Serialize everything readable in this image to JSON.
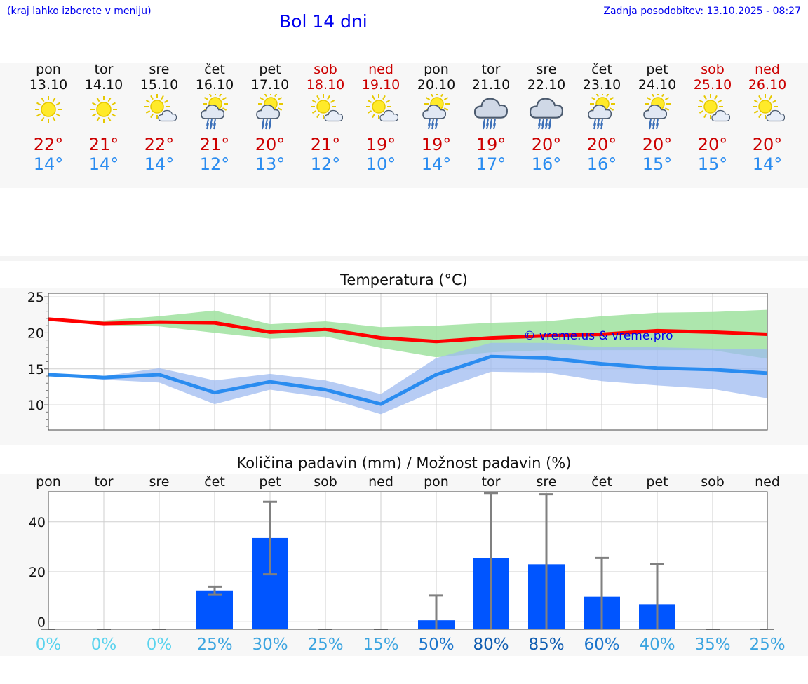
{
  "header": {
    "menu_hint": "(kraj lahko izberete v meniju)",
    "title": "Bol 14 dni",
    "last_update": "Zadnja posodobitev: 13.10.2025 - 08:27"
  },
  "colors": {
    "weekend": "#cc0000",
    "tmax": "#cc0000",
    "tmin": "#2a8cf0",
    "max_line": "#ff0000",
    "min_line": "#2a8cf0",
    "max_band": "#9fe29f",
    "min_band": "#9fbbf0",
    "bar": "#0055ff",
    "whisker": "#808080"
  },
  "days": [
    {
      "name": "pon",
      "date": "13.10",
      "weekend": false,
      "icon": "sun-icon",
      "tmax": "22°",
      "tmin": "14°"
    },
    {
      "name": "tor",
      "date": "14.10",
      "weekend": false,
      "icon": "sun-icon",
      "tmax": "21°",
      "tmin": "14°"
    },
    {
      "name": "sre",
      "date": "15.10",
      "weekend": false,
      "icon": "sun-cloud-icon",
      "tmax": "22°",
      "tmin": "14°"
    },
    {
      "name": "čet",
      "date": "16.10",
      "weekend": false,
      "icon": "sun-cloud-rain-icon",
      "tmax": "21°",
      "tmin": "12°"
    },
    {
      "name": "pet",
      "date": "17.10",
      "weekend": false,
      "icon": "sun-cloud-rain-icon",
      "tmax": "20°",
      "tmin": "13°"
    },
    {
      "name": "sob",
      "date": "18.10",
      "weekend": true,
      "icon": "sun-cloud-icon",
      "tmax": "21°",
      "tmin": "12°"
    },
    {
      "name": "ned",
      "date": "19.10",
      "weekend": true,
      "icon": "sun-cloud-icon",
      "tmax": "19°",
      "tmin": "10°"
    },
    {
      "name": "pon",
      "date": "20.10",
      "weekend": false,
      "icon": "sun-cloud-rain-icon",
      "tmax": "19°",
      "tmin": "14°"
    },
    {
      "name": "tor",
      "date": "21.10",
      "weekend": false,
      "icon": "cloud-rain-icon",
      "tmax": "19°",
      "tmin": "17°"
    },
    {
      "name": "sre",
      "date": "22.10",
      "weekend": false,
      "icon": "cloud-rain-icon",
      "tmax": "20°",
      "tmin": "16°"
    },
    {
      "name": "čet",
      "date": "23.10",
      "weekend": false,
      "icon": "sun-cloud-rain-icon",
      "tmax": "20°",
      "tmin": "16°"
    },
    {
      "name": "pet",
      "date": "24.10",
      "weekend": false,
      "icon": "sun-cloud-rain-icon",
      "tmax": "20°",
      "tmin": "15°"
    },
    {
      "name": "sob",
      "date": "25.10",
      "weekend": true,
      "icon": "sun-cloud-icon",
      "tmax": "20°",
      "tmin": "15°"
    },
    {
      "name": "ned",
      "date": "26.10",
      "weekend": true,
      "icon": "sun-cloud-icon",
      "tmax": "20°",
      "tmin": "14°"
    }
  ],
  "chart_data": [
    {
      "type": "line",
      "title": "Temperatura (°C)",
      "watermark": "© vreme.us & vreme.pro",
      "x": [
        "13.10",
        "14.10",
        "15.10",
        "16.10",
        "17.10",
        "18.10",
        "19.10",
        "20.10",
        "21.10",
        "22.10",
        "23.10",
        "24.10",
        "25.10",
        "26.10"
      ],
      "ylim": [
        6.5,
        25.5
      ],
      "yticks": [
        10,
        15,
        20,
        25
      ],
      "grid": true,
      "series": [
        {
          "role": "max",
          "values": [
            21.9,
            21.3,
            21.5,
            21.4,
            20.1,
            20.5,
            19.3,
            18.8,
            19.3,
            19.6,
            19.8,
            20.3,
            20.1,
            19.8
          ],
          "band_low": [
            21.9,
            21.1,
            20.9,
            20.0,
            19.2,
            19.5,
            17.9,
            16.6,
            17.3,
            17.6,
            17.6,
            17.6,
            17.6,
            16.4
          ],
          "band_high": [
            21.9,
            21.7,
            22.3,
            23.1,
            21.2,
            21.6,
            20.8,
            21.0,
            21.4,
            21.6,
            22.3,
            22.8,
            22.9,
            23.2
          ]
        },
        {
          "role": "min",
          "values": [
            14.2,
            13.8,
            14.2,
            11.7,
            13.2,
            12.1,
            10.1,
            14.2,
            16.7,
            16.5,
            15.7,
            15.1,
            14.9,
            14.4
          ],
          "band_low": [
            14.2,
            13.5,
            13.1,
            10.1,
            12.1,
            11.0,
            8.7,
            12.0,
            14.6,
            14.5,
            13.3,
            12.7,
            12.2,
            10.9
          ],
          "band_high": [
            14.2,
            14.0,
            15.1,
            13.4,
            14.3,
            13.4,
            11.5,
            16.5,
            18.6,
            18.6,
            18.0,
            18.0,
            17.8,
            17.7
          ]
        }
      ]
    },
    {
      "type": "bar",
      "title": "Količina padavin (mm) / Možnost padavin (%)",
      "categories": [
        "pon",
        "tor",
        "sre",
        "čet",
        "pet",
        "sob",
        "ned",
        "pon",
        "tor",
        "sre",
        "čet",
        "pet",
        "sob",
        "ned"
      ],
      "ylim": [
        -3,
        52
      ],
      "yticks": [
        0,
        20,
        40
      ],
      "grid": true,
      "values": [
        0,
        0,
        0,
        12.5,
        33.5,
        0,
        0,
        0.6,
        25.5,
        23,
        10,
        7,
        0,
        0
      ],
      "error_low": [
        0,
        0,
        0,
        11,
        19,
        0,
        0,
        0,
        0,
        0,
        0,
        0,
        0,
        0
      ],
      "error_high": [
        0,
        0,
        0,
        14,
        48,
        0,
        0,
        10.5,
        51.5,
        51,
        25.5,
        23,
        0,
        0
      ],
      "probability": [
        "0%",
        "0%",
        "0%",
        "25%",
        "30%",
        "25%",
        "15%",
        "50%",
        "80%",
        "85%",
        "60%",
        "40%",
        "35%",
        "25%"
      ],
      "probability_colors": [
        "#5ad3ee",
        "#5ad3ee",
        "#5ad3ee",
        "#3aa4e0",
        "#3aa4e0",
        "#3aa4e0",
        "#3aa4e0",
        "#1b75cc",
        "#0d5bb0",
        "#0d5bb0",
        "#1b75cc",
        "#3aa4e0",
        "#3aa4e0",
        "#3aa4e0"
      ]
    }
  ]
}
